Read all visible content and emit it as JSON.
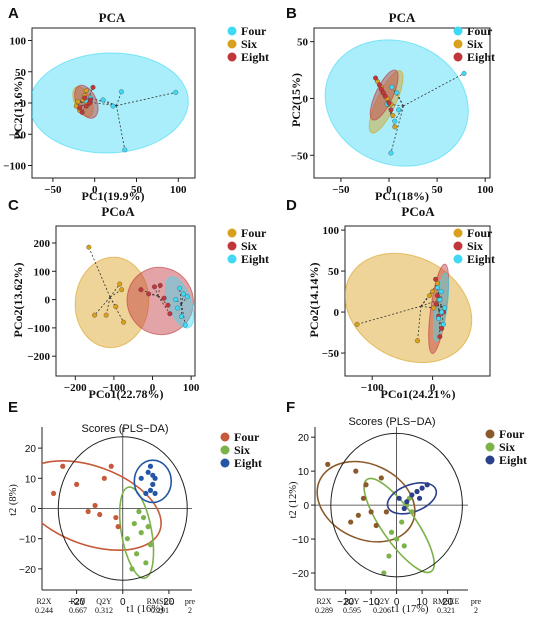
{
  "figure_labels": [
    "A",
    "B",
    "C",
    "D",
    "E",
    "F"
  ],
  "chart_data": [
    {
      "type": "scatter",
      "panel": "A",
      "title": "PCA",
      "xlabel": "PC1(19.9%)",
      "ylabel": "PC2(13.6%)",
      "xlim": [
        -75,
        120
      ],
      "ylim": [
        -120,
        120
      ],
      "xticks": [
        -50,
        0,
        50,
        100
      ],
      "xtick_labels": [
        "−50",
        "0",
        "50",
        "100"
      ],
      "yticks": [
        -100,
        -50,
        0,
        50,
        100
      ],
      "ytick_labels": [
        "−100",
        "−50",
        "0",
        "50",
        "100"
      ],
      "legend_position": "top-right",
      "series": [
        {
          "name": "Four",
          "color": "#40d9f5",
          "points": [
            [
              97,
              17
            ],
            [
              32,
              18
            ],
            [
              36,
              -75
            ],
            [
              10,
              5
            ],
            [
              22,
              -5
            ],
            [
              -10,
              2
            ],
            [
              -5,
              8
            ]
          ],
          "ellipse": {
            "cx": 17,
            "cy": 0,
            "rx": 95,
            "ry": 80,
            "angle": 2
          }
        },
        {
          "name": "Six",
          "color": "#d9a01c",
          "points": [
            [
              -22,
              -5
            ],
            [
              -14,
              5
            ],
            [
              -10,
              20
            ],
            [
              -18,
              -12
            ],
            [
              -8,
              -2
            ],
            [
              -12,
              12
            ],
            [
              -20,
              2
            ]
          ],
          "ellipse": {
            "cx": -14,
            "cy": 2,
            "rx": 10,
            "ry": 26,
            "angle": 25
          }
        },
        {
          "name": "Eight",
          "color": "#c0363b",
          "points": [
            [
              -15,
              -15
            ],
            [
              -10,
              -5
            ],
            [
              -5,
              5
            ],
            [
              -2,
              25
            ],
            [
              -18,
              -8
            ],
            [
              -6,
              0
            ],
            [
              -12,
              8
            ]
          ],
          "ellipse": {
            "cx": -10,
            "cy": 2,
            "rx": 12,
            "ry": 28,
            "angle": 25
          }
        }
      ]
    },
    {
      "type": "scatter",
      "panel": "B",
      "title": "PCA",
      "xlabel": "PC1(18%)",
      "ylabel": "PC2(15%)",
      "xlim": [
        -78,
        105
      ],
      "ylim": [
        -70,
        62
      ],
      "xticks": [
        -50,
        0,
        50,
        100
      ],
      "xtick_labels": [
        "−50",
        "0",
        "50",
        "100"
      ],
      "yticks": [
        -50,
        0,
        50
      ],
      "ytick_labels": [
        "−50",
        "0",
        "50"
      ],
      "legend_position": "top-right",
      "series": [
        {
          "name": "Four",
          "color": "#40d9f5",
          "points": [
            [
              78,
              22
            ],
            [
              2,
              -48
            ],
            [
              8,
              5
            ],
            [
              10,
              -10
            ],
            [
              -2,
              -5
            ],
            [
              3,
              10
            ],
            [
              6,
              -20
            ]
          ],
          "ellipse": {
            "cx": 8,
            "cy": -4,
            "rx": 76,
            "ry": 54,
            "angle": -22
          }
        },
        {
          "name": "Six",
          "color": "#d9a01c",
          "points": [
            [
              -12,
              15
            ],
            [
              -6,
              5
            ],
            [
              2,
              -5
            ],
            [
              6,
              -25
            ],
            [
              -2,
              0
            ],
            [
              4,
              -15
            ],
            [
              -8,
              10
            ]
          ],
          "ellipse": {
            "cx": -3,
            "cy": -3,
            "rx": 10,
            "ry": 30,
            "angle": -25
          }
        },
        {
          "name": "Eight",
          "color": "#c0363b",
          "points": [
            [
              -14,
              18
            ],
            [
              -10,
              12
            ],
            [
              -4,
              2
            ],
            [
              2,
              -10
            ],
            [
              -8,
              8
            ],
            [
              0,
              -4
            ],
            [
              -6,
              5
            ]
          ],
          "ellipse": {
            "cx": -5,
            "cy": 3,
            "rx": 9,
            "ry": 24,
            "angle": -25
          }
        }
      ]
    },
    {
      "type": "scatter",
      "panel": "C",
      "title": "PCoA",
      "xlabel": "PCo1(22.78%)",
      "ylabel": "PCo2(13.62%)",
      "xlim": [
        -250,
        110
      ],
      "ylim": [
        -270,
        260
      ],
      "xticks": [
        -200,
        -100,
        0,
        100
      ],
      "xtick_labels": [
        "−200",
        "−100",
        "0",
        "100"
      ],
      "yticks": [
        -200,
        -100,
        0,
        100,
        200
      ],
      "ytick_labels": [
        "−200",
        "−100",
        "0",
        "100",
        "200"
      ],
      "legend_position": "top-right",
      "series": [
        {
          "name": "Four",
          "color": "#d9a01c",
          "points": [
            [
              -165,
              185
            ],
            [
              -150,
              -55
            ],
            [
              -120,
              -55
            ],
            [
              -95,
              -25
            ],
            [
              -75,
              -80
            ],
            [
              -85,
              55
            ],
            [
              -80,
              35
            ]
          ],
          "ellipse": {
            "cx": -105,
            "cy": -10,
            "rx": 95,
            "ry": 160,
            "angle": -5
          }
        },
        {
          "name": "Six",
          "color": "#c0363b",
          "points": [
            [
              -30,
              35
            ],
            [
              5,
              45
            ],
            [
              40,
              -20
            ],
            [
              20,
              50
            ],
            [
              45,
              -50
            ],
            [
              30,
              5
            ],
            [
              -10,
              20
            ]
          ],
          "ellipse": {
            "cx": 20,
            "cy": -5,
            "rx": 85,
            "ry": 120,
            "angle": 32
          }
        },
        {
          "name": "Eight",
          "color": "#40d9f5",
          "points": [
            [
              60,
              0
            ],
            [
              70,
              40
            ],
            [
              75,
              -60
            ],
            [
              80,
              20
            ],
            [
              65,
              -30
            ],
            [
              90,
              10
            ],
            [
              85,
              -90
            ]
          ],
          "ellipse": {
            "cx": 70,
            "cy": -10,
            "rx": 30,
            "ry": 95,
            "angle": 20
          }
        }
      ]
    },
    {
      "type": "scatter",
      "panel": "D",
      "title": "PCoA",
      "xlabel": "PCo1(24.21%)",
      "ylabel": "PCo2(14.14%)",
      "xlim": [
        -145,
        95
      ],
      "ylim": [
        -78,
        105
      ],
      "xticks": [
        -100,
        0
      ],
      "xtick_labels": [
        "−100",
        "0"
      ],
      "yticks": [
        -50,
        0,
        50,
        100
      ],
      "ytick_labels": [
        "−50",
        "0",
        "50",
        "100"
      ],
      "legend_position": "top-right",
      "series": [
        {
          "name": "Four",
          "color": "#d9a01c",
          "points": [
            [
              -125,
              -15
            ],
            [
              -25,
              -35
            ],
            [
              0,
              25
            ],
            [
              8,
              35
            ],
            [
              10,
              15
            ],
            [
              2,
              5
            ],
            [
              -5,
              20
            ]
          ],
          "ellipse": {
            "cx": -40,
            "cy": 5,
            "rx": 110,
            "ry": 62,
            "angle": -28
          }
        },
        {
          "name": "Six",
          "color": "#c0363b",
          "points": [
            [
              5,
              40
            ],
            [
              8,
              20
            ],
            [
              10,
              -5
            ],
            [
              15,
              -20
            ],
            [
              12,
              -30
            ],
            [
              18,
              0
            ],
            [
              6,
              10
            ]
          ],
          "ellipse": {
            "cx": 10,
            "cy": 4,
            "rx": 13,
            "ry": 55,
            "angle": -8
          }
        },
        {
          "name": "Eight",
          "color": "#40d9f5",
          "points": [
            [
              8,
              30
            ],
            [
              12,
              15
            ],
            [
              15,
              0
            ],
            [
              18,
              -15
            ],
            [
              10,
              -8
            ],
            [
              20,
              5
            ],
            [
              14,
              25
            ]
          ],
          "ellipse": {
            "cx": 14,
            "cy": 6,
            "rx": 10,
            "ry": 42,
            "angle": -8
          }
        }
      ]
    },
    {
      "type": "scatter",
      "panel": "E",
      "title": "Scores (PLS−DA)",
      "xlabel": "t1 (16%)",
      "ylabel": "t2 (8%)",
      "xlim": [
        -35,
        30
      ],
      "ylim": [
        -27,
        27
      ],
      "xticks": [
        -20,
        0,
        20
      ],
      "xtick_labels": [
        "−20",
        "0",
        "20"
      ],
      "yticks": [
        -20,
        -10,
        0,
        10,
        20
      ],
      "ytick_labels": [
        "−20",
        "−10",
        "0",
        "10",
        "20"
      ],
      "legend_position": "top-right",
      "stats": {
        "headers": [
          "R2X",
          "R2Y",
          "Q2Y",
          "RMSEE",
          "pre"
        ],
        "values": [
          "0.244",
          "0.667",
          "0.312",
          "0.291",
          "2"
        ]
      },
      "series": [
        {
          "name": "Four",
          "color": "#c65a3a",
          "points": [
            [
              -30,
              5
            ],
            [
              -26,
              14
            ],
            [
              -20,
              8
            ],
            [
              -15,
              -1
            ],
            [
              -12,
              1
            ],
            [
              -10,
              -2
            ],
            [
              -5,
              14
            ],
            [
              -3,
              -3
            ],
            [
              -8,
              10
            ],
            [
              -2,
              -6
            ]
          ],
          "ellipse": {
            "cx": -14,
            "cy": 1,
            "rx": 32,
            "ry": 13,
            "angle": -20
          }
        },
        {
          "name": "Six",
          "color": "#7cb24a",
          "points": [
            [
              2,
              -10
            ],
            [
              5,
              -5
            ],
            [
              6,
              -15
            ],
            [
              8,
              -8
            ],
            [
              9,
              -3
            ],
            [
              10,
              -18
            ],
            [
              12,
              -12
            ],
            [
              7,
              -1
            ],
            [
              4,
              -20
            ],
            [
              11,
              -6
            ]
          ],
          "ellipse": {
            "cx": 6,
            "cy": -8,
            "rx": 20,
            "ry": 5,
            "angle": -80
          }
        },
        {
          "name": "Eight",
          "color": "#2456a6",
          "points": [
            [
              8,
              10
            ],
            [
              11,
              12
            ],
            [
              12,
              6
            ],
            [
              13,
              8
            ],
            [
              14,
              10
            ],
            [
              10,
              5
            ],
            [
              12,
              14
            ],
            [
              14,
              5
            ],
            [
              13,
              11
            ]
          ],
          "ellipse": {
            "cx": 13,
            "cy": 9,
            "rx": 8,
            "ry": 7,
            "angle": 0
          }
        }
      ]
    },
    {
      "type": "scatter",
      "panel": "F",
      "title": "Scores (PLS−DA)",
      "xlabel": "t1 (17%)",
      "ylabel": "t2 (12%)",
      "xlim": [
        -32,
        28
      ],
      "ylim": [
        -25,
        23
      ],
      "xticks": [
        -20,
        -10,
        0,
        10,
        20
      ],
      "xtick_labels": [
        "−20",
        "−10",
        "0",
        "10",
        "20"
      ],
      "yticks": [
        -20,
        -10,
        0,
        10,
        20
      ],
      "ytick_labels": [
        "−20",
        "−10",
        "0",
        "10",
        "20"
      ],
      "legend_position": "top-right",
      "stats": {
        "headers": [
          "R2X",
          "R2Y",
          "Q2Y",
          "RMSEE",
          "pre"
        ],
        "values": [
          "0.289",
          "0.595",
          "0.206",
          "0.321",
          "2"
        ]
      },
      "series": [
        {
          "name": "Four",
          "color": "#8b5a2b",
          "points": [
            [
              -27,
              12
            ],
            [
              -18,
              -5
            ],
            [
              -15,
              -3
            ],
            [
              -12,
              6
            ],
            [
              -10,
              -2
            ],
            [
              -8,
              -6
            ],
            [
              -6,
              8
            ],
            [
              -13,
              2
            ],
            [
              -4,
              -2
            ],
            [
              -16,
              10
            ]
          ],
          "ellipse": {
            "cx": -12,
            "cy": 1,
            "rx": 20,
            "ry": 11,
            "angle": -25
          }
        },
        {
          "name": "Six",
          "color": "#7cb24a",
          "points": [
            [
              -5,
              -20
            ],
            [
              -3,
              -15
            ],
            [
              0,
              -10
            ],
            [
              2,
              -5
            ],
            [
              4,
              0
            ],
            [
              6,
              -2
            ],
            [
              8,
              4
            ],
            [
              -2,
              -8
            ],
            [
              3,
              -12
            ],
            [
              5,
              2
            ]
          ],
          "ellipse": {
            "cx": 1,
            "cy": -6,
            "rx": 22,
            "ry": 5,
            "angle": -55
          }
        },
        {
          "name": "Eight",
          "color": "#2c3f8c",
          "points": [
            [
              1,
              2
            ],
            [
              4,
              1
            ],
            [
              6,
              3
            ],
            [
              8,
              4
            ],
            [
              10,
              5
            ],
            [
              12,
              6
            ],
            [
              3,
              -1
            ],
            [
              9,
              2
            ]
          ],
          "ellipse": {
            "cx": 6,
            "cy": 2,
            "rx": 10,
            "ry": 4,
            "angle": 20
          }
        }
      ]
    }
  ]
}
